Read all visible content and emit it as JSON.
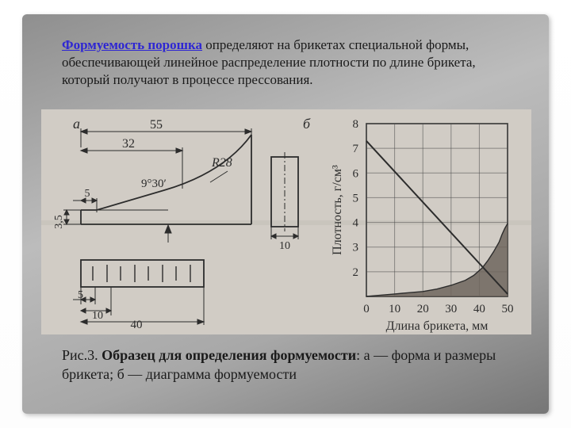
{
  "colors": {
    "slide_bg": "#ffffff",
    "frame_grad_a": "#8f8f8f",
    "frame_grad_b": "#bcbcbc",
    "scan_bg": "#d4d0c8",
    "scan_bg_alt": "#ccc7bf",
    "ink": "#2c2c2c",
    "ink_dark": "#1a1a1a",
    "term_color": "#2e26d3",
    "grid": "#4a4a4a",
    "curve_fill": "#6e655d"
  },
  "text": {
    "term": "Формуемость порошка",
    "paragraph_rest": " определяют на брикетах специальной формы, обеспечивающей линейное распределение плотности по длине брикета, который получают в процессе прессования.",
    "caption_prefix": "Рис.3. ",
    "caption_bold": "Образец для определения формуемости",
    "caption_rest": ": а — форма и размеры брикета; б — диаграмма формуемости"
  },
  "subfigs": {
    "a": "а",
    "b": "б"
  },
  "drawing_a": {
    "dim_55": "55",
    "dim_32": "32",
    "dim_5": "5",
    "dim_35": "3,5",
    "radius": "R28",
    "angle": "9°30′",
    "plan_5": "5",
    "plan_10": "10",
    "plan_40": "40",
    "cross_10": "10"
  },
  "chart_b": {
    "x_label": "Длина брикета, мм",
    "y_label": "Плотность, г/см³",
    "xlim": [
      0,
      50
    ],
    "ylim": [
      1,
      8
    ],
    "x_ticks": [
      0,
      10,
      20,
      30,
      40,
      50
    ],
    "y_ticks": [
      2,
      3,
      4,
      5,
      6,
      7,
      8
    ],
    "line": [
      [
        0,
        7.3
      ],
      [
        50,
        1.1
      ]
    ],
    "shaded_curve": [
      [
        0,
        1.0
      ],
      [
        5,
        1.05
      ],
      [
        10,
        1.1
      ],
      [
        15,
        1.15
      ],
      [
        20,
        1.2
      ],
      [
        25,
        1.3
      ],
      [
        30,
        1.45
      ],
      [
        35,
        1.65
      ],
      [
        38,
        1.85
      ],
      [
        41,
        2.15
      ],
      [
        43,
        2.45
      ],
      [
        45,
        2.8
      ],
      [
        47,
        3.2
      ],
      [
        48,
        3.5
      ],
      [
        49,
        3.75
      ],
      [
        50,
        3.95
      ]
    ],
    "line_width": 2,
    "grid_width": 1
  }
}
